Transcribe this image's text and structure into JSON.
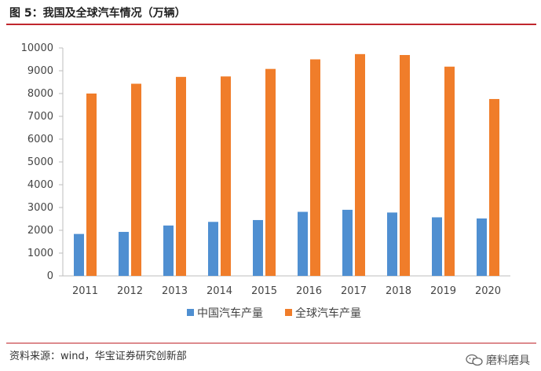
{
  "figure_title": "图 5：我国及全球汽车情况（万辆）",
  "source": "资料来源：wind，华宝证券研究创新部",
  "watermark": "磨料磨具",
  "colors": {
    "china": "#4f8fd1",
    "global": "#f07d2a",
    "rule": "#c0272d"
  },
  "chart_data": {
    "type": "bar",
    "title": "",
    "xlabel": "",
    "ylabel": "",
    "categories": [
      "2011",
      "2012",
      "2013",
      "2014",
      "2015",
      "2016",
      "2017",
      "2018",
      "2019",
      "2020"
    ],
    "ylim": [
      0,
      10000
    ],
    "yticks": [
      0,
      1000,
      2000,
      3000,
      4000,
      5000,
      6000,
      7000,
      8000,
      9000,
      10000
    ],
    "grid": false,
    "legend_position": "bottom",
    "series": [
      {
        "name": "中国汽车产量",
        "color": "#4f8fd1",
        "values": [
          1840,
          1930,
          2210,
          2370,
          2450,
          2810,
          2900,
          2780,
          2570,
          2520
        ]
      },
      {
        "name": "全球汽车产量",
        "color": "#f07d2a",
        "values": [
          8000,
          8430,
          8730,
          8750,
          9080,
          9500,
          9730,
          9690,
          9180,
          7760
        ]
      }
    ]
  }
}
